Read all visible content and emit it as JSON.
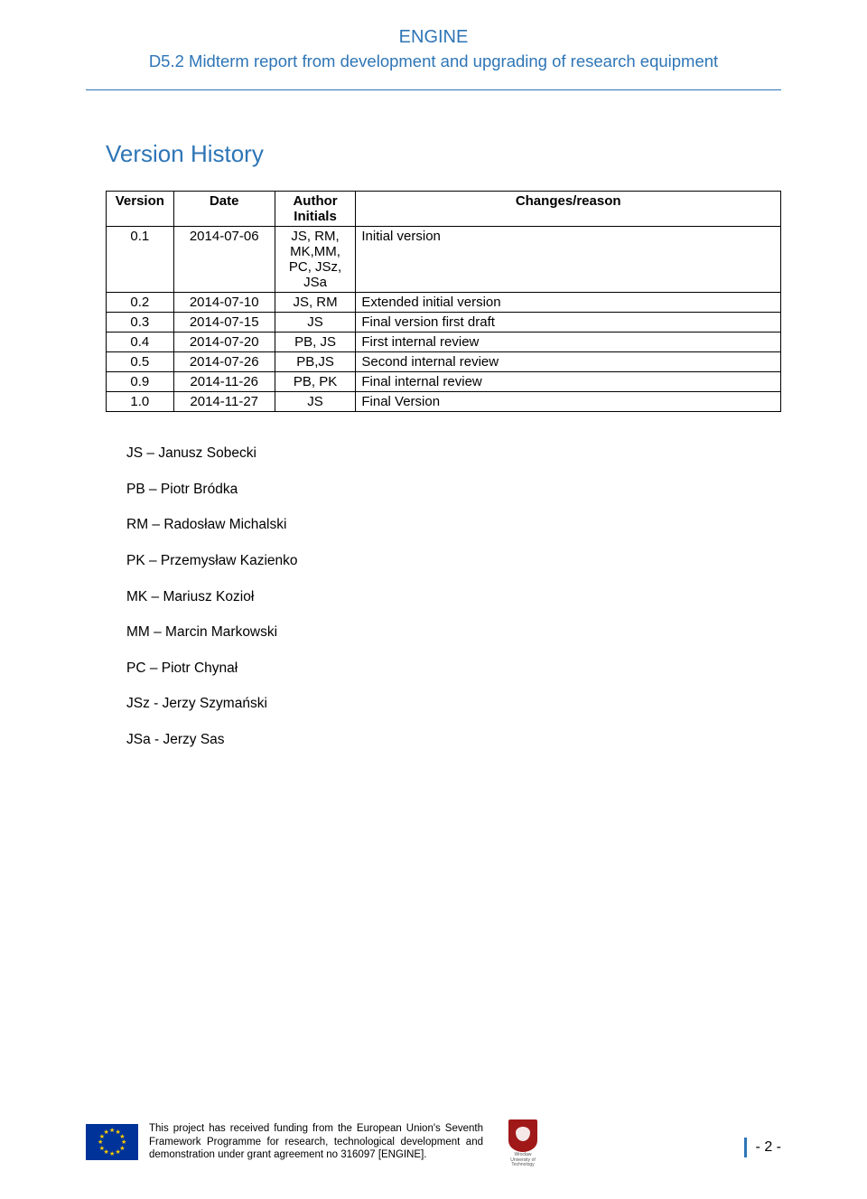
{
  "header": {
    "title": "ENGINE",
    "subtitle": "D5.2 Midterm report from development and upgrading of research equipment"
  },
  "section_title": "Version History",
  "table": {
    "headers": {
      "version": "Version",
      "date": "Date",
      "author": "Author Initials",
      "changes": "Changes/reason"
    },
    "rows": [
      {
        "version": "0.1",
        "date": "2014-07-06",
        "author": "JS, RM, MK,MM, PC, JSz, JSa",
        "changes": "Initial version"
      },
      {
        "version": "0.2",
        "date": "2014-07-10",
        "author": "JS, RM",
        "changes": "Extended initial version"
      },
      {
        "version": "0.3",
        "date": "2014-07-15",
        "author": "JS",
        "changes": "Final version first draft"
      },
      {
        "version": "0.4",
        "date": "2014-07-20",
        "author": "PB, JS",
        "changes": "First internal review"
      },
      {
        "version": "0.5",
        "date": "2014-07-26",
        "author": "PB,JS",
        "changes": "Second internal review"
      },
      {
        "version": "0.9",
        "date": "2014-11-26",
        "author": "PB, PK",
        "changes": "Final internal review"
      },
      {
        "version": "1.0",
        "date": "2014-11-27",
        "author": "JS",
        "changes": "Final Version"
      }
    ]
  },
  "initials": [
    "JS – Janusz Sobecki",
    "PB – Piotr Bródka",
    "RM – Radosław Michalski",
    "PK – Przemysław Kazienko",
    "MK – Mariusz Kozioł",
    "MM – Marcin Markowski",
    "PC – Piotr Chynał",
    "JSz - Jerzy Szymański",
    "JSa - Jerzy Sas"
  ],
  "footer": {
    "text": "This project has received funding from the European Union's Seventh Framework Programme for research, technological development and demonstration under grant agreement no 316097 [ENGINE].",
    "crest_label": "Wrocław University of Technology",
    "page_num": "- 2 -"
  },
  "colors": {
    "accent": "#2e75b6",
    "eu_blue": "#003399",
    "eu_gold": "#ffcc00",
    "crest_red": "#a01818"
  }
}
